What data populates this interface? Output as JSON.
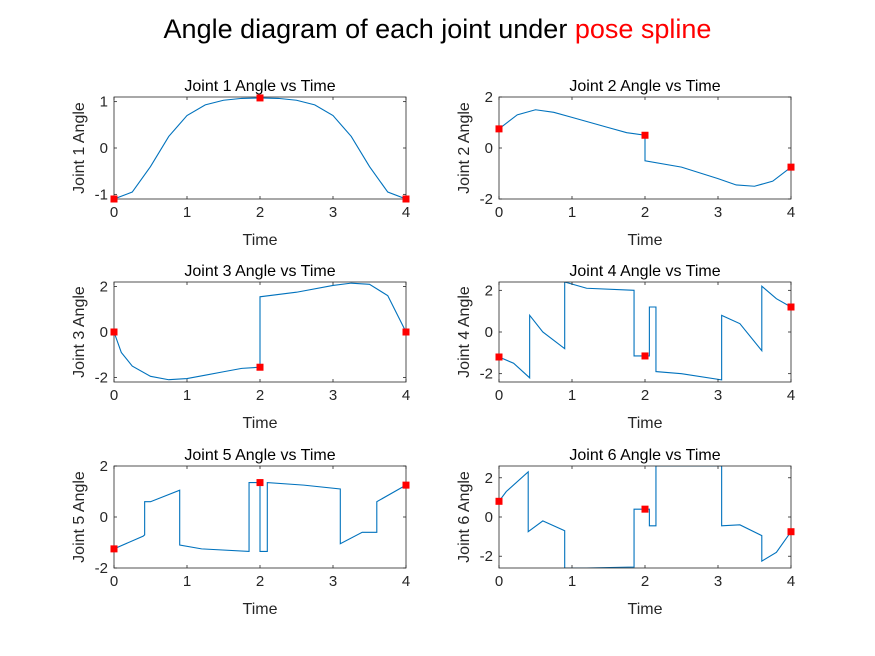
{
  "figure": {
    "title_main": "Angle diagram of each joint under",
    "title_highlight": "pose spline",
    "highlight_color": "#ff0000",
    "line_color": "#0072bd",
    "marker_color": "#ff0000"
  },
  "chart_data": [
    {
      "type": "line",
      "title": "Joint 1 Angle vs Time",
      "xlabel": "Time",
      "ylabel": "Joint 1 Angle",
      "xlim": [
        0,
        4
      ],
      "ylim": [
        -1.1,
        1.1
      ],
      "xticks": [
        0,
        1,
        2,
        3,
        4
      ],
      "yticks": [
        -1,
        0,
        1
      ],
      "grid": false,
      "series": [
        {
          "x": [
            0,
            0.25,
            0.5,
            0.75,
            1.0,
            1.25,
            1.5,
            1.75,
            2.0,
            2.25,
            2.5,
            2.75,
            3.0,
            3.25,
            3.5,
            3.75,
            4.0
          ],
          "y": [
            -1.1,
            -0.95,
            -0.4,
            0.25,
            0.7,
            0.93,
            1.03,
            1.07,
            1.08,
            1.07,
            1.03,
            0.93,
            0.7,
            0.25,
            -0.4,
            -0.95,
            -1.1
          ]
        }
      ],
      "markers": {
        "x": [
          0,
          2,
          4
        ],
        "y": [
          -1.1,
          1.08,
          -1.1
        ]
      }
    },
    {
      "type": "line",
      "title": "Joint 2 Angle vs Time",
      "xlabel": "Time",
      "ylabel": "Joint 2 Angle",
      "xlim": [
        0,
        4
      ],
      "ylim": [
        -2,
        2
      ],
      "xticks": [
        0,
        1,
        2,
        3,
        4
      ],
      "yticks": [
        -2,
        0,
        2
      ],
      "grid": false,
      "series": [
        {
          "x": [
            0,
            0.25,
            0.5,
            0.75,
            1.0,
            1.25,
            1.5,
            1.75,
            2.0,
            2.0,
            2.5,
            3.0,
            3.25,
            3.5,
            3.75,
            4.0
          ],
          "y": [
            0.75,
            1.3,
            1.5,
            1.4,
            1.2,
            1.0,
            0.8,
            0.6,
            0.5,
            -0.5,
            -0.75,
            -1.2,
            -1.45,
            -1.5,
            -1.3,
            -0.75
          ]
        }
      ],
      "markers": {
        "x": [
          0,
          2,
          4
        ],
        "y": [
          0.75,
          0.5,
          -0.75
        ]
      }
    },
    {
      "type": "line",
      "title": "Joint 3 Angle vs Time",
      "xlabel": "Time",
      "ylabel": "Joint 3 Angle",
      "xlim": [
        0,
        4
      ],
      "ylim": [
        -2.2,
        2.2
      ],
      "xticks": [
        0,
        1,
        2,
        3,
        4
      ],
      "yticks": [
        -2,
        0,
        2
      ],
      "grid": false,
      "series": [
        {
          "x": [
            0,
            0.1,
            0.25,
            0.5,
            0.75,
            1.0,
            1.25,
            1.5,
            1.75,
            2.0,
            2.0,
            2.5,
            3.0,
            3.25,
            3.5,
            3.75,
            4.0
          ],
          "y": [
            0.0,
            -0.9,
            -1.5,
            -1.95,
            -2.1,
            -2.05,
            -1.9,
            -1.75,
            -1.6,
            -1.55,
            1.55,
            1.75,
            2.05,
            2.15,
            2.1,
            1.6,
            0.0
          ]
        }
      ],
      "markers": {
        "x": [
          0,
          2,
          4
        ],
        "y": [
          0.0,
          -1.55,
          0.0
        ]
      }
    },
    {
      "type": "line",
      "title": "Joint 4 Angle vs Time",
      "xlabel": "Time",
      "ylabel": "Joint 4 Angle",
      "xlim": [
        0,
        4
      ],
      "ylim": [
        -2.4,
        2.4
      ],
      "xticks": [
        0,
        1,
        2,
        3,
        4
      ],
      "yticks": [
        -2,
        0,
        2
      ],
      "grid": false,
      "series": [
        {
          "x": [
            0,
            0.2,
            0.42,
            0.42,
            0.6,
            0.9,
            0.9,
            1.2,
            1.85,
            1.85,
            2.0,
            2.06,
            2.06,
            2.15,
            2.15,
            2.5,
            3.05,
            3.05,
            3.3,
            3.6,
            3.6,
            3.8,
            4.0
          ],
          "y": [
            -1.2,
            -1.5,
            -2.2,
            0.8,
            0.0,
            -0.8,
            2.4,
            2.1,
            2.0,
            -1.15,
            -1.15,
            -1.15,
            1.2,
            1.2,
            -1.9,
            -2.0,
            -2.3,
            0.8,
            0.4,
            -0.9,
            2.2,
            1.6,
            1.2
          ]
        }
      ],
      "markers": {
        "x": [
          0,
          2,
          4
        ],
        "y": [
          -1.2,
          -1.15,
          1.2
        ]
      }
    },
    {
      "type": "line",
      "title": "Joint 5 Angle vs Time",
      "xlabel": "Time",
      "ylabel": "Joint 5 Angle",
      "xlim": [
        0,
        4
      ],
      "ylim": [
        -2,
        2
      ],
      "xticks": [
        0,
        1,
        2,
        3,
        4
      ],
      "yticks": [
        -2,
        0,
        2
      ],
      "grid": false,
      "series": [
        {
          "x": [
            0,
            0.4,
            0.42,
            0.42,
            0.5,
            0.9,
            0.9,
            1.2,
            1.85,
            1.85,
            2.0,
            2.0,
            2.1,
            2.1,
            2.6,
            3.1,
            3.1,
            3.4,
            3.6,
            3.6,
            4.0
          ],
          "y": [
            -1.25,
            -0.75,
            -0.7,
            0.6,
            0.6,
            1.05,
            -1.1,
            -1.25,
            -1.35,
            1.35,
            1.35,
            -1.35,
            -1.35,
            1.35,
            1.25,
            1.1,
            -1.05,
            -0.6,
            -0.6,
            0.6,
            1.25
          ]
        }
      ],
      "markers": {
        "x": [
          0,
          2,
          4
        ],
        "y": [
          -1.25,
          1.35,
          1.25
        ]
      }
    },
    {
      "type": "line",
      "title": "Joint 6 Angle vs Time",
      "xlabel": "Time",
      "ylabel": "Joint 6 Angle",
      "xlim": [
        0,
        4
      ],
      "ylim": [
        -2.6,
        2.6
      ],
      "xticks": [
        0,
        1,
        2,
        3,
        4
      ],
      "yticks": [
        -2,
        0,
        2
      ],
      "grid": false,
      "series": [
        {
          "x": [
            0,
            0.1,
            0.4,
            0.4,
            0.6,
            0.9,
            0.9,
            1.2,
            1.85,
            1.85,
            2.05,
            2.06,
            2.06,
            2.15,
            2.15,
            2.6,
            3.05,
            3.05,
            3.3,
            3.6,
            3.6,
            3.8,
            4.0
          ],
          "y": [
            0.8,
            1.3,
            2.3,
            -0.75,
            -0.2,
            -0.7,
            -2.6,
            -2.6,
            -2.55,
            0.4,
            0.4,
            0.4,
            -0.45,
            -0.45,
            2.6,
            2.6,
            2.6,
            -0.45,
            -0.4,
            -0.95,
            -2.25,
            -1.8,
            -0.75
          ]
        }
      ],
      "markers": {
        "x": [
          0,
          2,
          4
        ],
        "y": [
          0.8,
          0.4,
          -0.75
        ]
      }
    }
  ]
}
